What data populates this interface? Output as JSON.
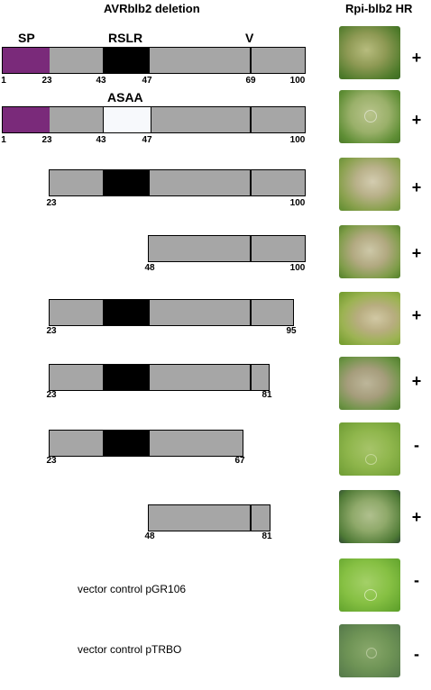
{
  "header": {
    "title": "AVRblb2 deletion",
    "result_title": "Rpi-blb2 HR"
  },
  "features": {
    "sp": "SP",
    "rslr": "RSLR",
    "v": "V",
    "asaa": "ASAA"
  },
  "colors": {
    "sp": "#7a2a7a",
    "rslr": "#000000",
    "body": "#a6a6a6",
    "asaa": "#f7f9fc"
  },
  "constructs": [
    {
      "ticks": [
        "1",
        "23",
        "43",
        "47",
        "69",
        "100"
      ],
      "hr": "+"
    },
    {
      "ticks": [
        "1",
        "23",
        "43",
        "47",
        "100"
      ],
      "hr": "+"
    },
    {
      "ticks": [
        "23",
        "100"
      ],
      "hr": "+"
    },
    {
      "ticks": [
        "48",
        "100"
      ],
      "hr": "+"
    },
    {
      "ticks": [
        "23",
        "95"
      ],
      "hr": "+"
    },
    {
      "ticks": [
        "23",
        "81"
      ],
      "hr": "+"
    },
    {
      "ticks": [
        "23",
        "67"
      ],
      "hr": "-"
    },
    {
      "ticks": [
        "48",
        "81"
      ],
      "hr": "+"
    },
    {
      "label": "vector control pGR106",
      "hr": "-"
    },
    {
      "label": "vector control pTRBO",
      "hr": "-"
    }
  ]
}
